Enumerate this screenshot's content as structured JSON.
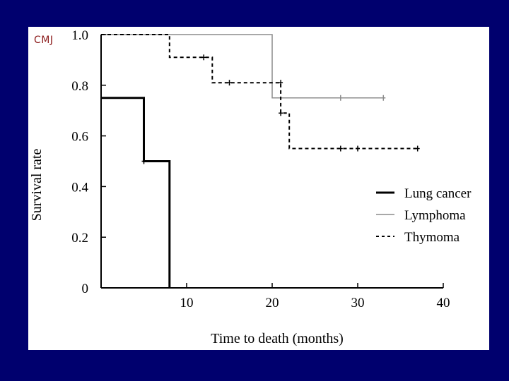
{
  "logo_text": "CMJ",
  "colors": {
    "background": "#00006e",
    "panel": "#ffffff",
    "logo": "#8b1a1a"
  },
  "chart_data": {
    "type": "line",
    "title": "",
    "xlabel": "Time to death (months)",
    "ylabel": "Survival rate",
    "xlim": [
      0,
      40
    ],
    "ylim": [
      0,
      1.0
    ],
    "xticks": [
      10,
      20,
      30,
      40
    ],
    "yticks": [
      0,
      0.2,
      0.4,
      0.6,
      0.8,
      1.0
    ],
    "ytick_labels": [
      "0",
      "0.2",
      "0.4",
      "0.6",
      "0.8",
      "1.0"
    ],
    "grid": false,
    "legend_position": "right-center",
    "series": [
      {
        "name": "Lung cancer",
        "style": "solid-thick",
        "color": "#000000",
        "steps": [
          [
            0,
            0.75
          ],
          [
            5,
            0.5
          ],
          [
            8,
            0
          ]
        ],
        "end_x": 8,
        "censored": [
          [
            5,
            0.5
          ]
        ]
      },
      {
        "name": "Lymphoma",
        "style": "solid-thin",
        "color": "#8c8c8c",
        "steps": [
          [
            0,
            1.0
          ],
          [
            20,
            0.75
          ]
        ],
        "end_x": 33,
        "censored": [
          [
            28,
            0.75
          ],
          [
            33,
            0.75
          ]
        ]
      },
      {
        "name": "Thymoma",
        "style": "dashed",
        "color": "#000000",
        "steps": [
          [
            0,
            1.0
          ],
          [
            8,
            0.91
          ],
          [
            13,
            0.81
          ],
          [
            21,
            0.69
          ],
          [
            22,
            0.55
          ]
        ],
        "end_x": 37,
        "censored": [
          [
            12,
            0.91
          ],
          [
            15,
            0.81
          ],
          [
            21,
            0.81
          ],
          [
            21,
            0.69
          ],
          [
            28,
            0.55
          ],
          [
            30,
            0.55
          ],
          [
            37,
            0.55
          ]
        ]
      }
    ]
  }
}
